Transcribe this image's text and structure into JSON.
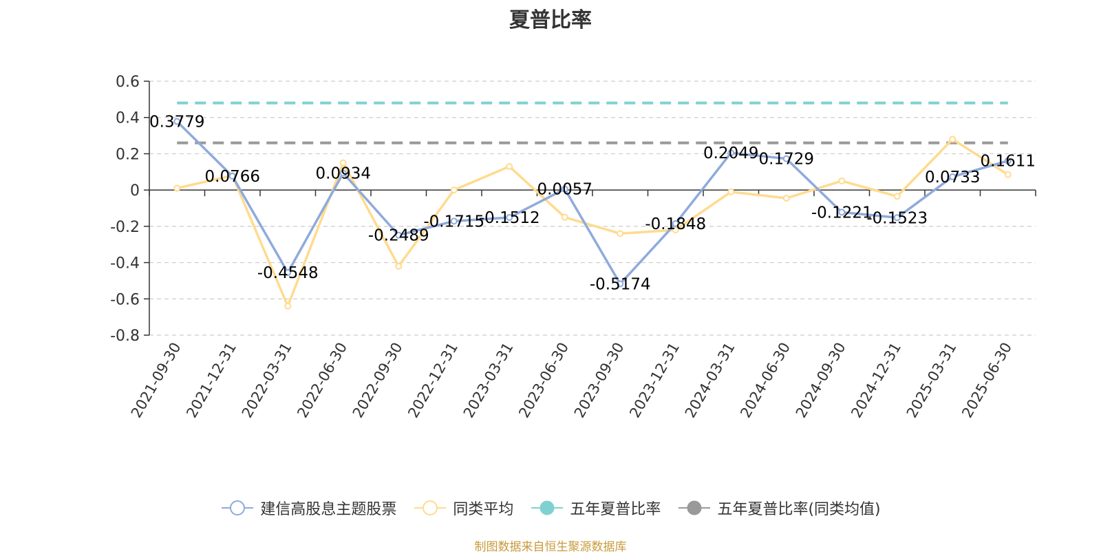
{
  "chart_data": {
    "type": "line",
    "title": "夏普比率",
    "categories": [
      "2021-09-30",
      "2021-12-31",
      "2022-03-31",
      "2022-06-30",
      "2022-09-30",
      "2022-12-31",
      "2023-03-31",
      "2023-06-30",
      "2023-09-30",
      "2023-12-31",
      "2024-03-31",
      "2024-06-30",
      "2024-09-30",
      "2024-12-31",
      "2025-03-31",
      "2025-06-30"
    ],
    "y_ticks": [
      "0.6",
      "0.4",
      "0.2",
      "0",
      "-0.2",
      "-0.4",
      "-0.6",
      "-0.8"
    ],
    "ylim": [
      -0.8,
      0.6
    ],
    "grid": true,
    "legend_position": "bottom",
    "series": [
      {
        "name": "建信高股息主题股票",
        "color": "#8faadc",
        "values": [
          0.3779,
          0.0766,
          -0.4548,
          0.0934,
          -0.2489,
          -0.1715,
          -0.1512,
          0.0057,
          -0.5174,
          -0.1848,
          0.2049,
          0.1729,
          -0.1221,
          -0.1523,
          0.0733,
          0.1611
        ],
        "labels": [
          "0.3779",
          "0.0766",
          "-0.4548",
          "0.0934",
          "-0.2489",
          "-0.1715",
          "-0.1512",
          "0.0057",
          "-0.5174",
          "-0.1848",
          "0.2049",
          "0.1729",
          "-0.1221",
          "-0.1523",
          "0.0733",
          "0.1611"
        ]
      },
      {
        "name": "同类平均",
        "color": "#ffdb8f",
        "values": [
          0.01,
          0.08,
          -0.64,
          0.15,
          -0.42,
          0.0,
          0.13,
          -0.15,
          -0.24,
          -0.22,
          -0.01,
          -0.045,
          0.05,
          -0.035,
          0.28,
          0.085
        ]
      },
      {
        "name": "五年夏普比率",
        "color": "#7fd1d1",
        "dashed": true,
        "value": 0.48
      },
      {
        "name": "五年夏普比率(同类均值)",
        "color": "#999999",
        "dashed": true,
        "value": 0.26
      }
    ]
  },
  "source_text": "制图数据来自恒生聚源数据库"
}
